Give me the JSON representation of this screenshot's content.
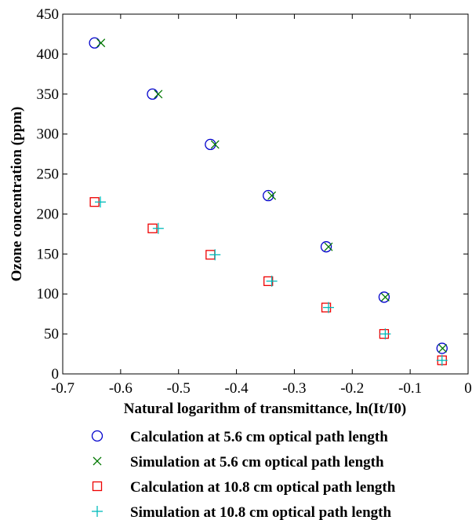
{
  "chart_data": {
    "type": "scatter",
    "title": "",
    "xlabel": "Natural logarithm of transmittance, ln(It/I0)",
    "ylabel": "Ozone concentration (ppm)",
    "xlim": [
      -0.7,
      0
    ],
    "ylim": [
      0,
      450
    ],
    "xticks": [
      -0.7,
      -0.6,
      -0.5,
      -0.4,
      -0.3,
      -0.2,
      -0.1,
      0
    ],
    "yticks": [
      0,
      50,
      100,
      150,
      200,
      250,
      300,
      350,
      400,
      450
    ],
    "xtick_labels": [
      "-0.7",
      "-0.6",
      "-0.5",
      "-0.4",
      "-0.3",
      "-0.2",
      "-0.1",
      "0"
    ],
    "ytick_labels": [
      "0",
      "50",
      "100",
      "150",
      "200",
      "250",
      "300",
      "350",
      "400",
      "450"
    ],
    "grid": false,
    "legend_position": "below",
    "series": [
      {
        "name": "Calculation at 5.6 cm optical path length",
        "marker": "circle",
        "color": "#0000CC",
        "x": [
          -0.645,
          -0.545,
          -0.445,
          -0.345,
          -0.245,
          -0.145,
          -0.045
        ],
        "y": [
          414,
          350,
          287,
          223,
          159,
          96,
          32
        ]
      },
      {
        "name": "Simulation at 5.6 cm optical path length",
        "marker": "x",
        "color": "#007700",
        "x": [
          -0.634,
          -0.535,
          -0.437,
          -0.339,
          -0.241,
          -0.143,
          -0.044
        ],
        "y": [
          414,
          350,
          287,
          223,
          159,
          96,
          32
        ]
      },
      {
        "name": "Calculation at 10.8 cm optical path length",
        "marker": "square",
        "color": "#EE0000",
        "x": [
          -0.645,
          -0.545,
          -0.445,
          -0.345,
          -0.245,
          -0.145,
          -0.045
        ],
        "y": [
          215,
          182,
          149,
          116,
          83,
          50,
          17
        ]
      },
      {
        "name": "Simulation at 10.8 cm optical path length",
        "marker": "plus",
        "color": "#00BBBB",
        "x": [
          -0.635,
          -0.535,
          -0.437,
          -0.339,
          -0.241,
          -0.143,
          -0.045
        ],
        "y": [
          215,
          182,
          149,
          116,
          83,
          50,
          17
        ]
      }
    ]
  }
}
